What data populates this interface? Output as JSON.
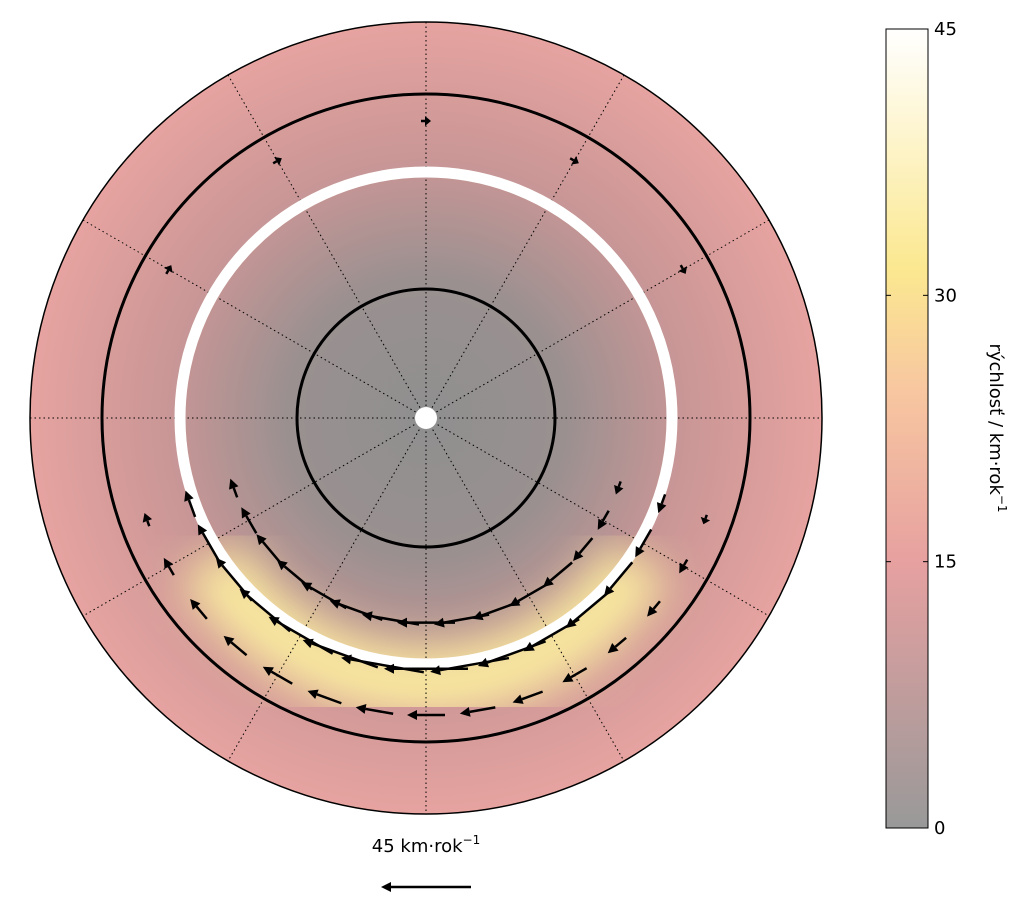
{
  "map": {
    "colat_max": 60,
    "vectors": [
      {
        "lon": -70,
        "colat": 38,
        "speed": 14
      },
      {
        "lon": -60,
        "colat": 38,
        "speed": 22
      },
      {
        "lon": -50,
        "colat": 38,
        "speed": 28
      },
      {
        "lon": -40,
        "colat": 38,
        "speed": 33
      },
      {
        "lon": -30,
        "colat": 38,
        "speed": 37
      },
      {
        "lon": -20,
        "colat": 38,
        "speed": 40
      },
      {
        "lon": -10,
        "colat": 38,
        "speed": 42
      },
      {
        "lon": 0,
        "colat": 38,
        "speed": 42
      },
      {
        "lon": 10,
        "colat": 38,
        "speed": 40
      },
      {
        "lon": 20,
        "colat": 38,
        "speed": 36
      },
      {
        "lon": 30,
        "colat": 38,
        "speed": 32
      },
      {
        "lon": 40,
        "colat": 38,
        "speed": 28
      },
      {
        "lon": 50,
        "colat": 38,
        "speed": 22
      },
      {
        "lon": 60,
        "colat": 38,
        "speed": 16
      },
      {
        "lon": 70,
        "colat": 38,
        "speed": 10
      },
      {
        "lon": -70,
        "colat": 31,
        "speed": 10
      },
      {
        "lon": -60,
        "colat": 31,
        "speed": 15
      },
      {
        "lon": -50,
        "colat": 31,
        "speed": 20
      },
      {
        "lon": -40,
        "colat": 31,
        "speed": 23
      },
      {
        "lon": -30,
        "colat": 31,
        "speed": 26
      },
      {
        "lon": -20,
        "colat": 31,
        "speed": 28
      },
      {
        "lon": -10,
        "colat": 31,
        "speed": 29
      },
      {
        "lon": 0,
        "colat": 31,
        "speed": 29
      },
      {
        "lon": 10,
        "colat": 31,
        "speed": 28
      },
      {
        "lon": 20,
        "colat": 31,
        "speed": 25
      },
      {
        "lon": 30,
        "colat": 31,
        "speed": 22
      },
      {
        "lon": 40,
        "colat": 31,
        "speed": 19
      },
      {
        "lon": 50,
        "colat": 31,
        "speed": 15
      },
      {
        "lon": 60,
        "colat": 31,
        "speed": 11
      },
      {
        "lon": 70,
        "colat": 31,
        "speed": 7
      },
      {
        "lon": -70,
        "colat": 45,
        "speed": 7
      },
      {
        "lon": -60,
        "colat": 45,
        "speed": 10
      },
      {
        "lon": -50,
        "colat": 45,
        "speed": 13
      },
      {
        "lon": -40,
        "colat": 45,
        "speed": 15
      },
      {
        "lon": -30,
        "colat": 45,
        "speed": 17
      },
      {
        "lon": -20,
        "colat": 45,
        "speed": 18
      },
      {
        "lon": -10,
        "colat": 45,
        "speed": 19
      },
      {
        "lon": 0,
        "colat": 45,
        "speed": 19
      },
      {
        "lon": 10,
        "colat": 45,
        "speed": 18
      },
      {
        "lon": 20,
        "colat": 45,
        "speed": 16
      },
      {
        "lon": 30,
        "colat": 45,
        "speed": 14
      },
      {
        "lon": 40,
        "colat": 45,
        "speed": 12
      },
      {
        "lon": 50,
        "colat": 45,
        "speed": 10
      },
      {
        "lon": 60,
        "colat": 45,
        "speed": 8
      },
      {
        "lon": 70,
        "colat": 45,
        "speed": 5
      },
      {
        "lon": 120,
        "colat": 45,
        "speed": 5
      },
      {
        "lon": 150,
        "colat": 45,
        "speed": 5
      },
      {
        "lon": 180,
        "colat": 45,
        "speed": 5
      },
      {
        "lon": 210,
        "colat": 45,
        "speed": 5
      },
      {
        "lon": 240,
        "colat": 45,
        "speed": 5
      }
    ]
  },
  "colorbar": {
    "clim": [
      0,
      45
    ],
    "ticks": [
      0,
      15,
      30,
      45
    ],
    "label": "rýchlosť / km·rok",
    "label_sup": "−1"
  },
  "scale_arrow": {
    "value": 45,
    "unit": "km·rok",
    "unit_sup": "−1"
  }
}
